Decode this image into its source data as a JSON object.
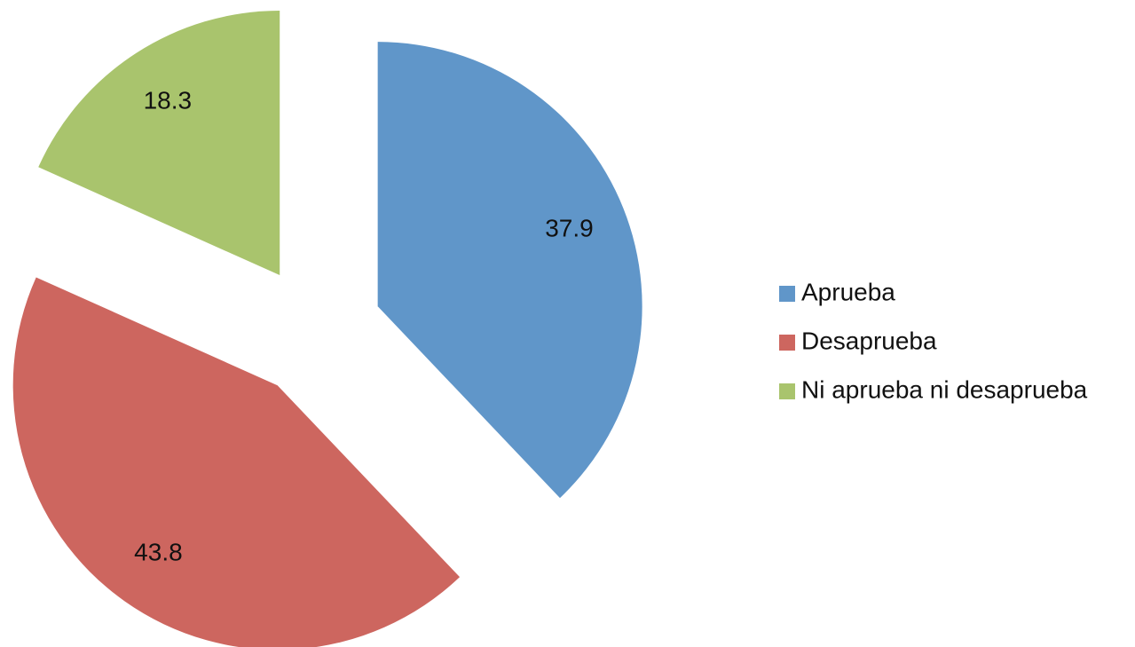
{
  "chart_data": {
    "type": "pie",
    "categories": [
      "Aprueba",
      "Desaprueba",
      "Ni aprueba ni desaprueba"
    ],
    "values": [
      37.9,
      43.8,
      18.3
    ],
    "colors": [
      "#6096c9",
      "#cd665f",
      "#a9c46d"
    ],
    "legend": "right"
  }
}
